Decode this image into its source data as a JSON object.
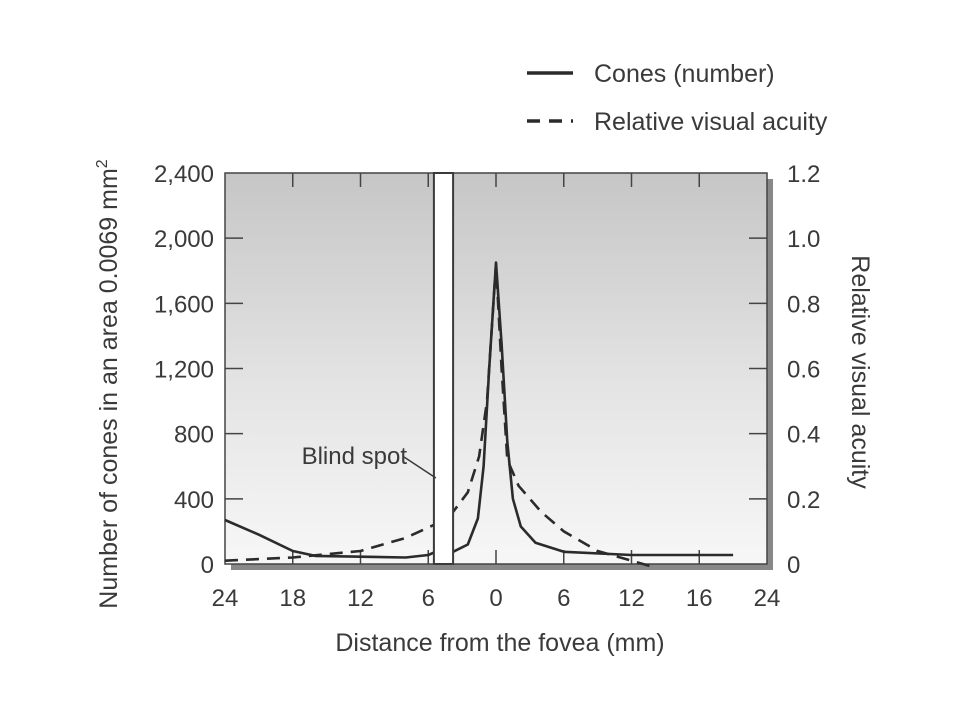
{
  "chart_data": {
    "type": "line",
    "title": "",
    "xlabel": "Distance from the fovea (mm)",
    "ylabel_left": "Number of cones in an area 0.0069 mm",
    "ylabel_left_superscript": "2",
    "ylabel_right": "Relative visual acuity",
    "x_tick_labels": [
      "24",
      "18",
      "12",
      "6",
      "0",
      "6",
      "12",
      "16",
      "24"
    ],
    "y_left_ticks": [
      {
        "label": "0",
        "value": 0
      },
      {
        "label": "400",
        "value": 400
      },
      {
        "label": "800",
        "value": 800
      },
      {
        "label": "1,200",
        "value": 1200
      },
      {
        "label": "1,600",
        "value": 1600
      },
      {
        "label": "2,000",
        "value": 2000
      },
      {
        "label": "2,400",
        "value": 2400
      }
    ],
    "y_right_ticks": [
      {
        "label": "0",
        "value": 0
      },
      {
        "label": "0.2",
        "value": 0.2
      },
      {
        "label": "0.4",
        "value": 0.4
      },
      {
        "label": "0.6",
        "value": 0.6
      },
      {
        "label": "0.8",
        "value": 0.8
      },
      {
        "label": "1.0",
        "value": 1.0
      },
      {
        "label": "1.2",
        "value": 1.2
      }
    ],
    "ylim_left": [
      0,
      2400
    ],
    "ylim_right": [
      0,
      1.2
    ],
    "xlim": [
      -24,
      24
    ],
    "grid": false,
    "legend_position": "top-right",
    "blind_spot": {
      "label": "Blind spot",
      "x_range": [
        -5.5,
        -3.8
      ]
    },
    "series": [
      {
        "name": "Cones (number)",
        "axis": "left",
        "style": "solid",
        "points": [
          {
            "x": -24,
            "y": 270
          },
          {
            "x": -21,
            "y": 180
          },
          {
            "x": -18,
            "y": 80
          },
          {
            "x": -16,
            "y": 50
          },
          {
            "x": -12,
            "y": 45
          },
          {
            "x": -8,
            "y": 40
          },
          {
            "x": -6,
            "y": 55
          },
          {
            "x": -5.5,
            "y": 70
          },
          {
            "x": -3.8,
            "y": 75
          },
          {
            "x": -2.5,
            "y": 120
          },
          {
            "x": -1.6,
            "y": 280
          },
          {
            "x": -1.1,
            "y": 600
          },
          {
            "x": -0.6,
            "y": 1200
          },
          {
            "x": 0,
            "y": 1850
          },
          {
            "x": 0.5,
            "y": 1350
          },
          {
            "x": 1,
            "y": 750
          },
          {
            "x": 1.5,
            "y": 400
          },
          {
            "x": 2.2,
            "y": 230
          },
          {
            "x": 3.5,
            "y": 130
          },
          {
            "x": 6,
            "y": 75
          },
          {
            "x": 12,
            "y": 55
          },
          {
            "x": 16,
            "y": 55
          },
          {
            "x": 21,
            "y": 55
          }
        ]
      },
      {
        "name": "Relative visual acuity",
        "axis": "right",
        "style": "dashed",
        "points": [
          {
            "x": -24,
            "y": 0.01
          },
          {
            "x": -18,
            "y": 0.02
          },
          {
            "x": -15,
            "y": 0.03
          },
          {
            "x": -12,
            "y": 0.04
          },
          {
            "x": -8,
            "y": 0.08
          },
          {
            "x": -5.5,
            "y": 0.12
          },
          {
            "x": -3.8,
            "y": 0.16
          },
          {
            "x": -2.5,
            "y": 0.22
          },
          {
            "x": -1.5,
            "y": 0.33
          },
          {
            "x": -0.8,
            "y": 0.5
          },
          {
            "x": 0,
            "y": 0.92
          },
          {
            "x": 0.5,
            "y": 0.6
          },
          {
            "x": 1,
            "y": 0.32
          },
          {
            "x": 2,
            "y": 0.24
          },
          {
            "x": 4,
            "y": 0.16
          },
          {
            "x": 6,
            "y": 0.1
          },
          {
            "x": 9,
            "y": 0.04
          },
          {
            "x": 12,
            "y": 0.01
          },
          {
            "x": 14,
            "y": -0.01
          }
        ]
      }
    ]
  }
}
